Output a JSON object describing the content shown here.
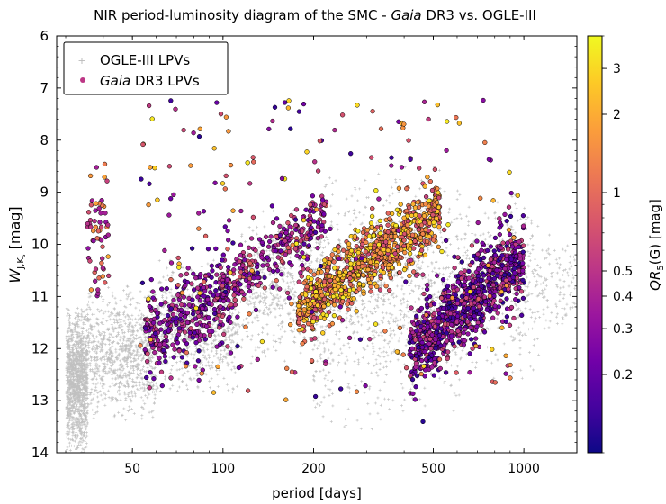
{
  "chart_data": {
    "type": "scatter",
    "title": "NIR period-luminosity diagram of the SMC - Gaia DR3 vs. OGLE-III",
    "title_parts": {
      "prefix": "NIR period-luminosity diagram of the SMC - ",
      "italic": "Gaia",
      "suffix": " DR3 vs. OGLE-III"
    },
    "xlabel": "period [days]",
    "ylabel": "W_JKs [mag]",
    "ylabel_parts": {
      "main": "W",
      "sub": "J,K",
      "subsub": "s",
      "unit": " [mag]"
    },
    "colorbar_label": "QR5(G) [mag]",
    "colorbar_label_parts": {
      "main": "QR",
      "sub": "5",
      "rest": "(G) [mag]"
    },
    "x_scale": "log",
    "xlim": [
      28,
      1500
    ],
    "ylim": [
      14,
      6
    ],
    "x_ticks": [
      50,
      100,
      200,
      500,
      1000
    ],
    "x_tick_labels": [
      "50",
      "100",
      "200",
      "500",
      "1000"
    ],
    "y_ticks": [
      6,
      7,
      8,
      9,
      10,
      11,
      12,
      13,
      14
    ],
    "y_tick_labels": [
      "6",
      "7",
      "8",
      "9",
      "10",
      "11",
      "12",
      "13",
      "14"
    ],
    "color_scale": "log",
    "color_range": [
      0.1,
      4.0
    ],
    "color_ticks": [
      0.2,
      0.3,
      0.4,
      0.5,
      1,
      2,
      3
    ],
    "color_tick_labels": [
      "0.2",
      "0.3",
      "0.4",
      "0.5",
      "1",
      "2",
      "3"
    ],
    "colormap": [
      "#0d0887",
      "#46039f",
      "#7201a8",
      "#9c179e",
      "#bd3786",
      "#d8576b",
      "#ed7953",
      "#fb9f3a",
      "#fdca26",
      "#f0f921"
    ],
    "legend": {
      "position": "top-left",
      "entries": [
        {
          "label": "OGLE-III LPVs",
          "marker": "plus",
          "color": "#bbbbbb"
        },
        {
          "label_italic": "Gaia",
          "label_rest": " DR3 LPVs",
          "marker": "circle",
          "color": "#bd3786"
        }
      ]
    },
    "series": [
      {
        "name": "OGLE-III LPVs",
        "marker": "plus",
        "color": "#c0c0c0",
        "density_groups": [
          {
            "logP": [
              1.48,
              1.55
            ],
            "W": [
              11.2,
              14.0
            ],
            "n": 1200
          },
          {
            "logP": [
              1.55,
              1.78
            ],
            "W": [
              10.8,
              13.4
            ],
            "n": 900
          },
          {
            "logP": [
              1.78,
              2.05
            ],
            "W": [
              10.3,
              12.9
            ],
            "n": 700
          },
          {
            "logP": [
              2.05,
              2.3
            ],
            "W": [
              9.3,
              12.3
            ],
            "n": 500
          },
          {
            "logP": [
              2.3,
              2.55
            ],
            "W": [
              8.6,
              13.6
            ],
            "n": 550
          },
          {
            "logP": [
              2.55,
              2.8
            ],
            "W": [
              8.5,
              13.3
            ],
            "n": 500
          },
          {
            "logP": [
              2.8,
              3.05
            ],
            "W": [
              9.0,
              12.6
            ],
            "n": 350
          },
          {
            "logP": [
              3.05,
              3.17
            ],
            "W": [
              9.8,
              11.8
            ],
            "n": 100
          }
        ]
      },
      {
        "name": "Gaia DR3 LPVs",
        "marker": "circle",
        "color_by": "QR5(G)",
        "sequences": [
          {
            "logP_range": [
              1.74,
              2.02
            ],
            "W_at_start": 11.8,
            "W_slope": -3.2,
            "scatter": 0.45,
            "QR": [
              0.15,
              0.6
            ],
            "n": 320
          },
          {
            "logP_range": [
              1.98,
              2.35
            ],
            "W_at_start": 11.0,
            "W_slope": -4.3,
            "scatter": 0.3,
            "QR": [
              0.2,
              0.9
            ],
            "n": 280
          },
          {
            "logP_range": [
              2.25,
              2.72
            ],
            "W_at_start": 11.3,
            "W_slope": -4.2,
            "scatter": 0.3,
            "QR": [
              0.6,
              3.5
            ],
            "n": 950
          },
          {
            "logP_range": [
              2.62,
              3.0
            ],
            "W_at_start": 12.0,
            "W_slope": -4.6,
            "scatter": 0.4,
            "QR": [
              0.12,
              0.7
            ],
            "n": 900
          },
          {
            "logP_range": [
              1.55,
              1.62
            ],
            "W_at_start": 9.8,
            "W_slope": 0.0,
            "scatter": 0.7,
            "QR": [
              0.3,
              2.0
            ],
            "n": 60
          }
        ],
        "n_sparse": 260
      }
    ]
  }
}
